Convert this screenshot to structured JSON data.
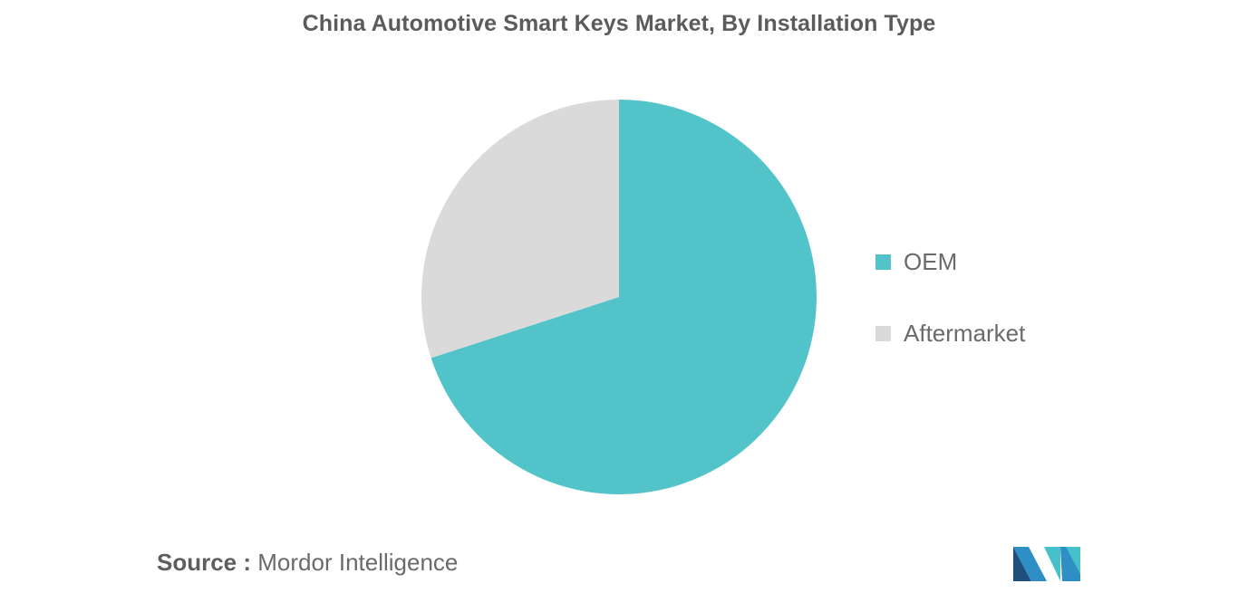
{
  "chart_data": {
    "type": "pie",
    "title": "China Automotive Smart Keys Market, By Installation Type",
    "categories": [
      "OEM",
      "Aftermarket"
    ],
    "values": [
      70,
      30
    ],
    "colors": [
      "#52c4c9",
      "#dadada"
    ],
    "start_angle_deg": 0,
    "direction": "clockwise",
    "legend_position": "right"
  },
  "legend": {
    "items": [
      {
        "label": "OEM",
        "color": "#52c4c9"
      },
      {
        "label": "Aftermarket",
        "color": "#dadada"
      }
    ]
  },
  "source": {
    "prefix": "Source :",
    "text": "Mordor Intelligence"
  },
  "logo": {
    "icon": "mordor-intelligence-logo-icon",
    "colors": [
      "#1f4f7c",
      "#2d8fc4",
      "#46c1cc"
    ]
  }
}
